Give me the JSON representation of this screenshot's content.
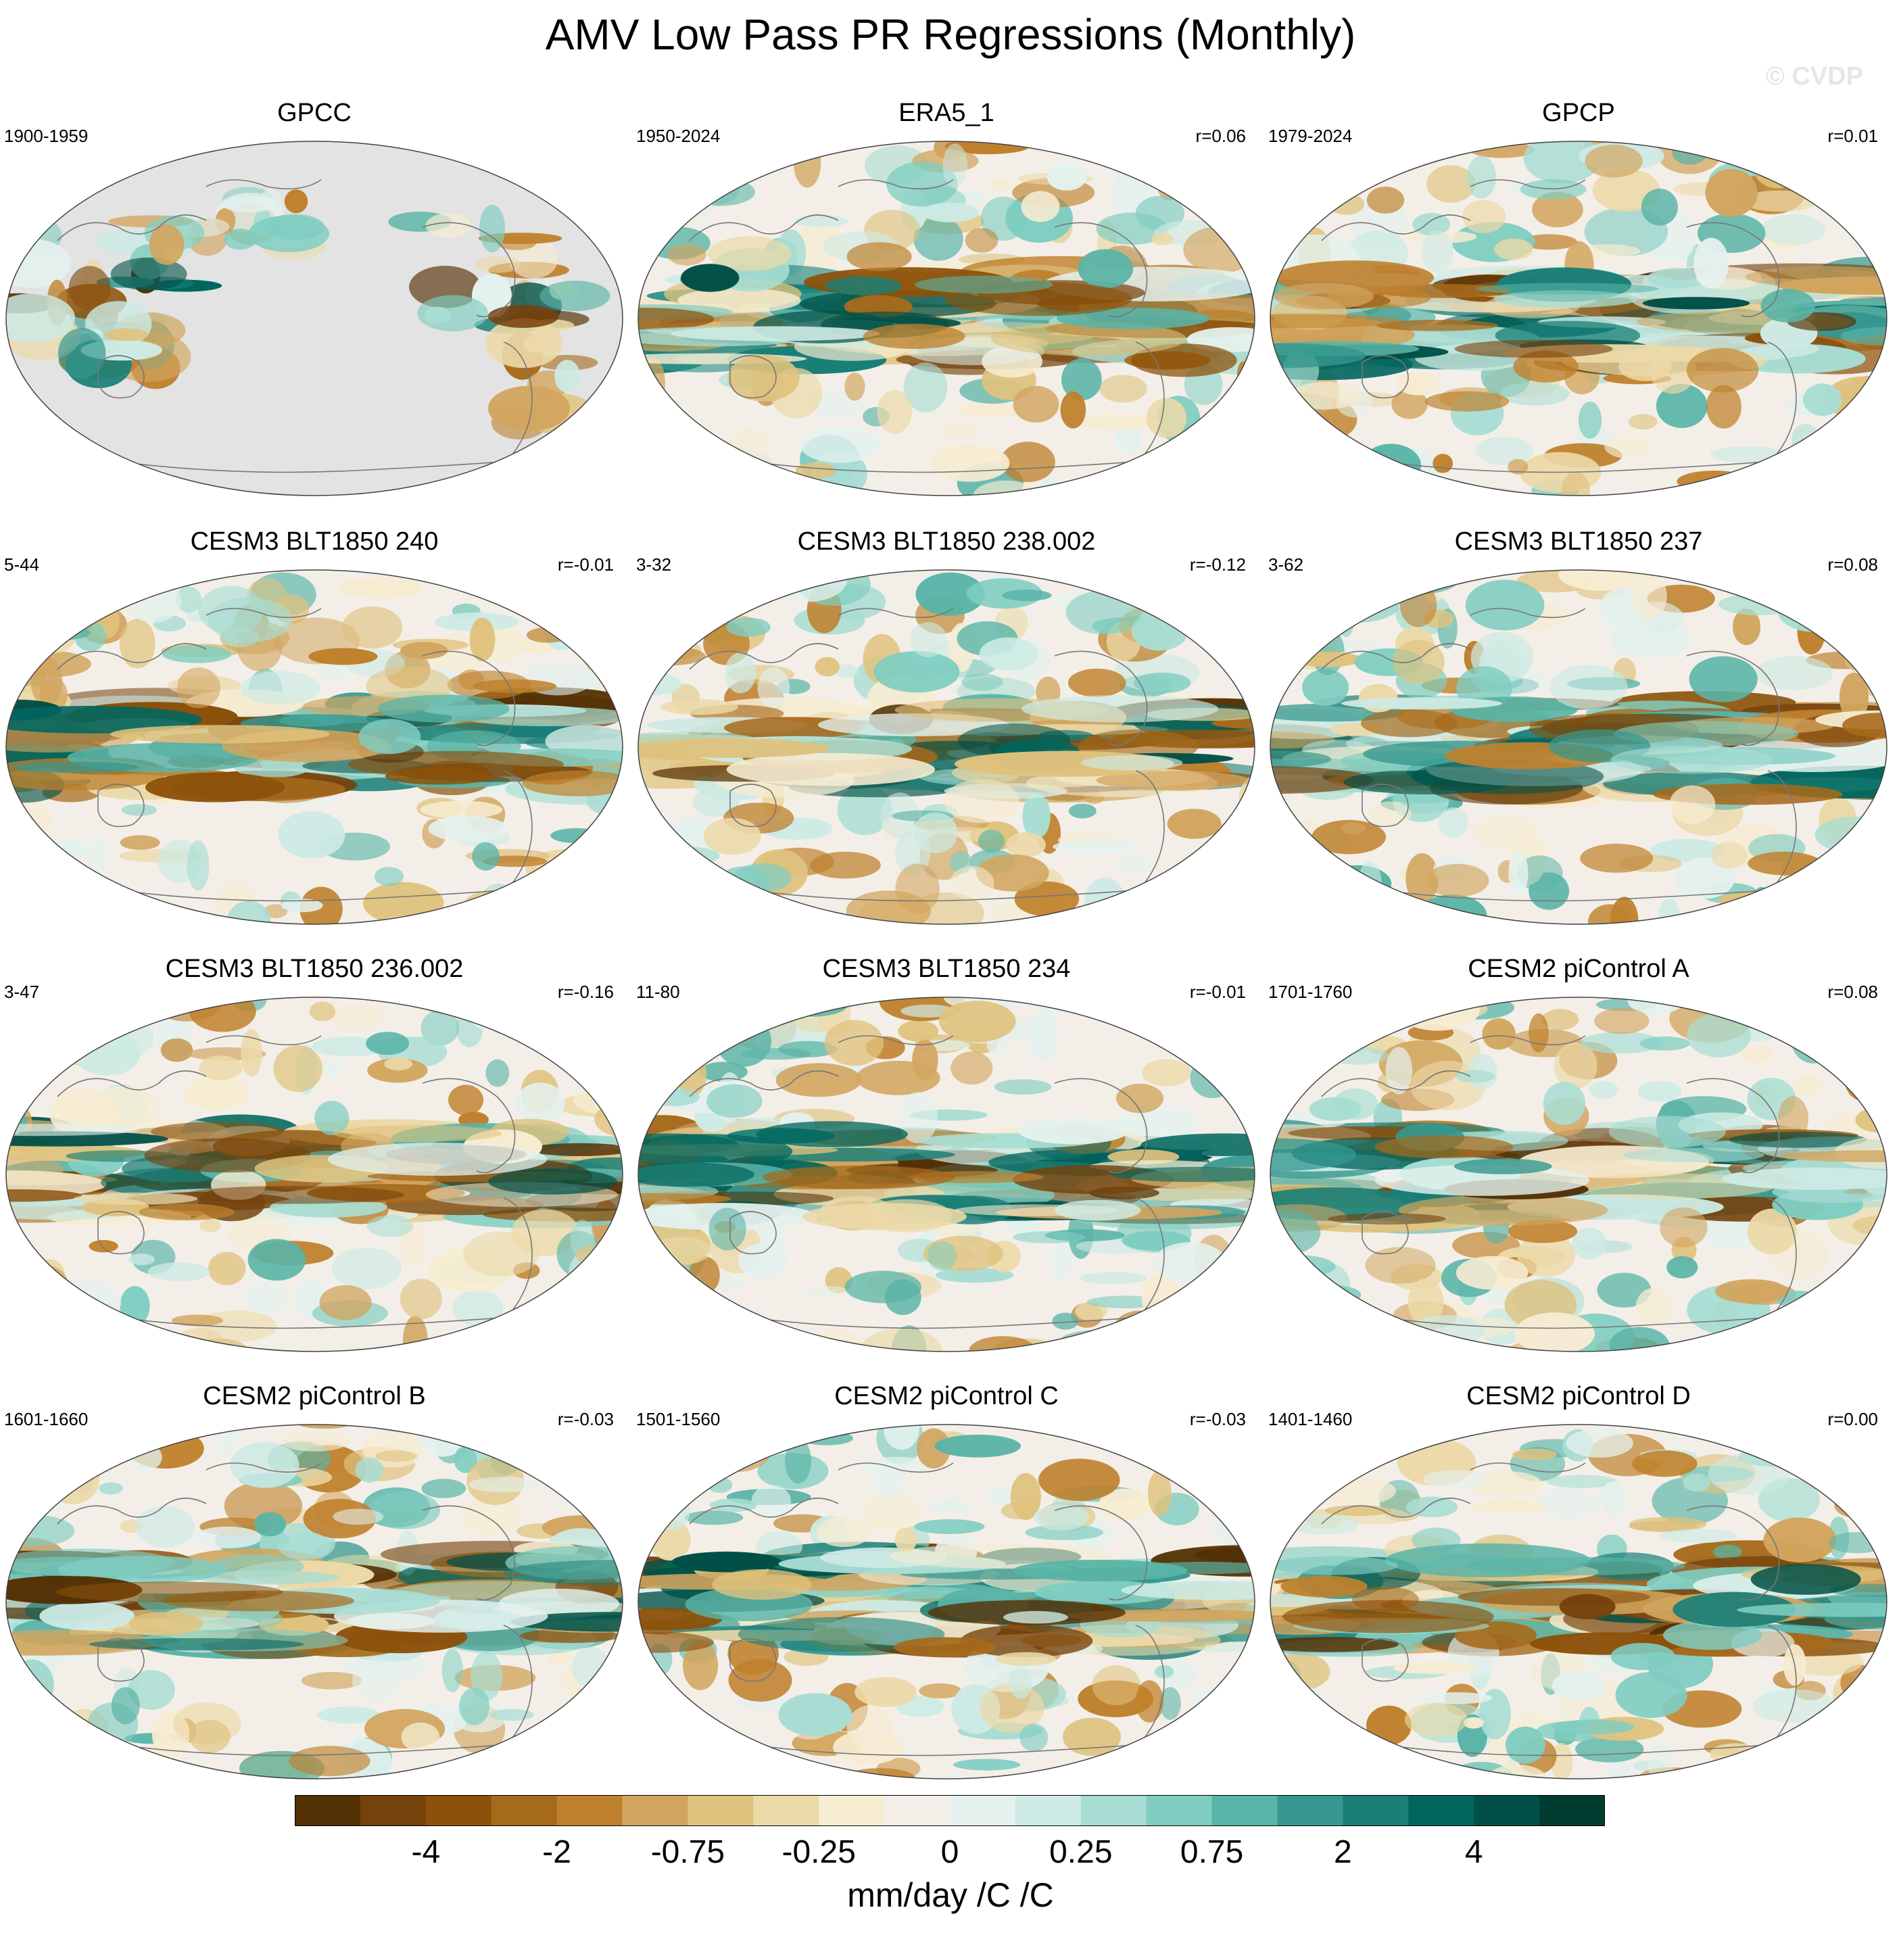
{
  "title": "AMV Low Pass PR Regressions (Monthly)",
  "watermark": "© CVDP",
  "panels": [
    {
      "title": "GPCC",
      "years": "1900-1959",
      "r": "",
      "kind": "land"
    },
    {
      "title": "ERA5_1",
      "years": "1950-2024",
      "r": "r=0.06",
      "kind": "full"
    },
    {
      "title": "GPCP",
      "years": "1979-2024",
      "r": "r=0.01",
      "kind": "full"
    },
    {
      "title": "CESM3 BLT1850 240",
      "years": "5-44",
      "r": "r=-0.01",
      "kind": "full"
    },
    {
      "title": "CESM3 BLT1850 238.002",
      "years": "3-32",
      "r": "r=-0.12",
      "kind": "full"
    },
    {
      "title": "CESM3 BLT1850 237",
      "years": "3-62",
      "r": "r=0.08",
      "kind": "full"
    },
    {
      "title": "CESM3 BLT1850 236.002",
      "years": "3-47",
      "r": "r=-0.16",
      "kind": "full"
    },
    {
      "title": "CESM3 BLT1850 234",
      "years": "11-80",
      "r": "r=-0.01",
      "kind": "full"
    },
    {
      "title": "CESM2 piControl A",
      "years": "1701-1760",
      "r": "r=0.08",
      "kind": "full"
    },
    {
      "title": "CESM2 piControl B",
      "years": "1601-1660",
      "r": "r=-0.03",
      "kind": "full"
    },
    {
      "title": "CESM2 piControl C",
      "years": "1501-1560",
      "r": "r=-0.03",
      "kind": "full"
    },
    {
      "title": "CESM2 piControl D",
      "years": "1401-1460",
      "r": "r=0.00",
      "kind": "full"
    }
  ],
  "colorbar": {
    "colors": [
      "#543005",
      "#76420c",
      "#8c510a",
      "#a66a1c",
      "#bf812d",
      "#d2a55f",
      "#dfc27d",
      "#ecd9a8",
      "#f6ecd2",
      "#f3efe8",
      "#e4f1ee",
      "#cdeae4",
      "#a8ddd3",
      "#80cdc1",
      "#5ab4a7",
      "#35978f",
      "#1a7f77",
      "#01665e",
      "#015047",
      "#003c30"
    ],
    "labels": [
      "-4",
      "-2",
      "-0.75",
      "-0.25",
      "0",
      "0.25",
      "0.75",
      "2",
      "4"
    ],
    "units": "mm/day /C /C"
  },
  "land_color": "#e3e3e3"
}
